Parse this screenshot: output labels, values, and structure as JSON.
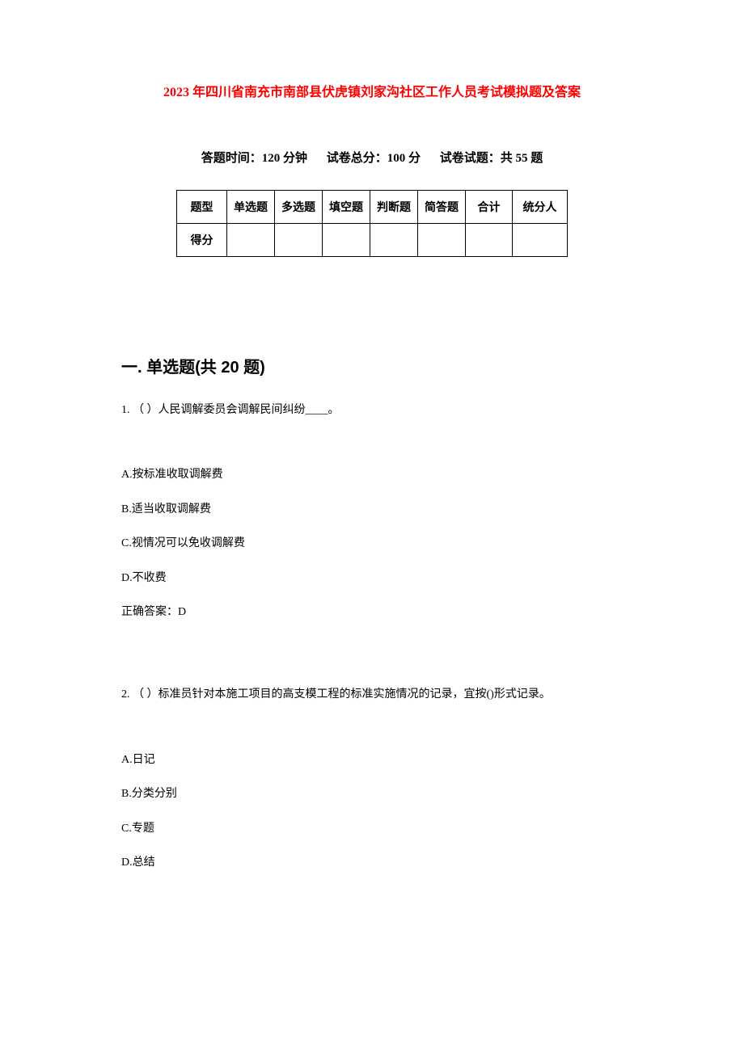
{
  "title": "2023 年四川省南充市南部县伏虎镇刘家沟社区工作人员考试模拟题及答案",
  "subtitle": {
    "time": "答题时间：120 分钟",
    "total": "试卷总分：100 分",
    "count": "试卷试题：共 55 题"
  },
  "table": {
    "headers": [
      "题型",
      "单选题",
      "多选题",
      "填空题",
      "判断题",
      "简答题",
      "合计",
      "统分人"
    ],
    "row_label": "得分",
    "border_color": "#000000",
    "cell_fontsize": 14,
    "cell_fontweight": "bold"
  },
  "section": {
    "heading": "一. 单选题(共 20 题)"
  },
  "questions": [
    {
      "number": "1.",
      "prompt": "（ ）人民调解委员会调解民间纠纷____。",
      "options": [
        "A.按标准收取调解费",
        "B.适当收取调解费",
        "C.视情况可以免收调解费",
        "D.不收费"
      ],
      "answer": "正确答案：D"
    },
    {
      "number": "2.",
      "prompt": "（ ）标准员针对本施工项目的高支模工程的标准实施情况的记录，宜按()形式记录。",
      "options": [
        "A.日记",
        "B.分类分别",
        "C.专题",
        "D.总结"
      ],
      "answer": ""
    }
  ],
  "colors": {
    "title": "#ff0000",
    "text": "#000000",
    "background": "#ffffff"
  }
}
